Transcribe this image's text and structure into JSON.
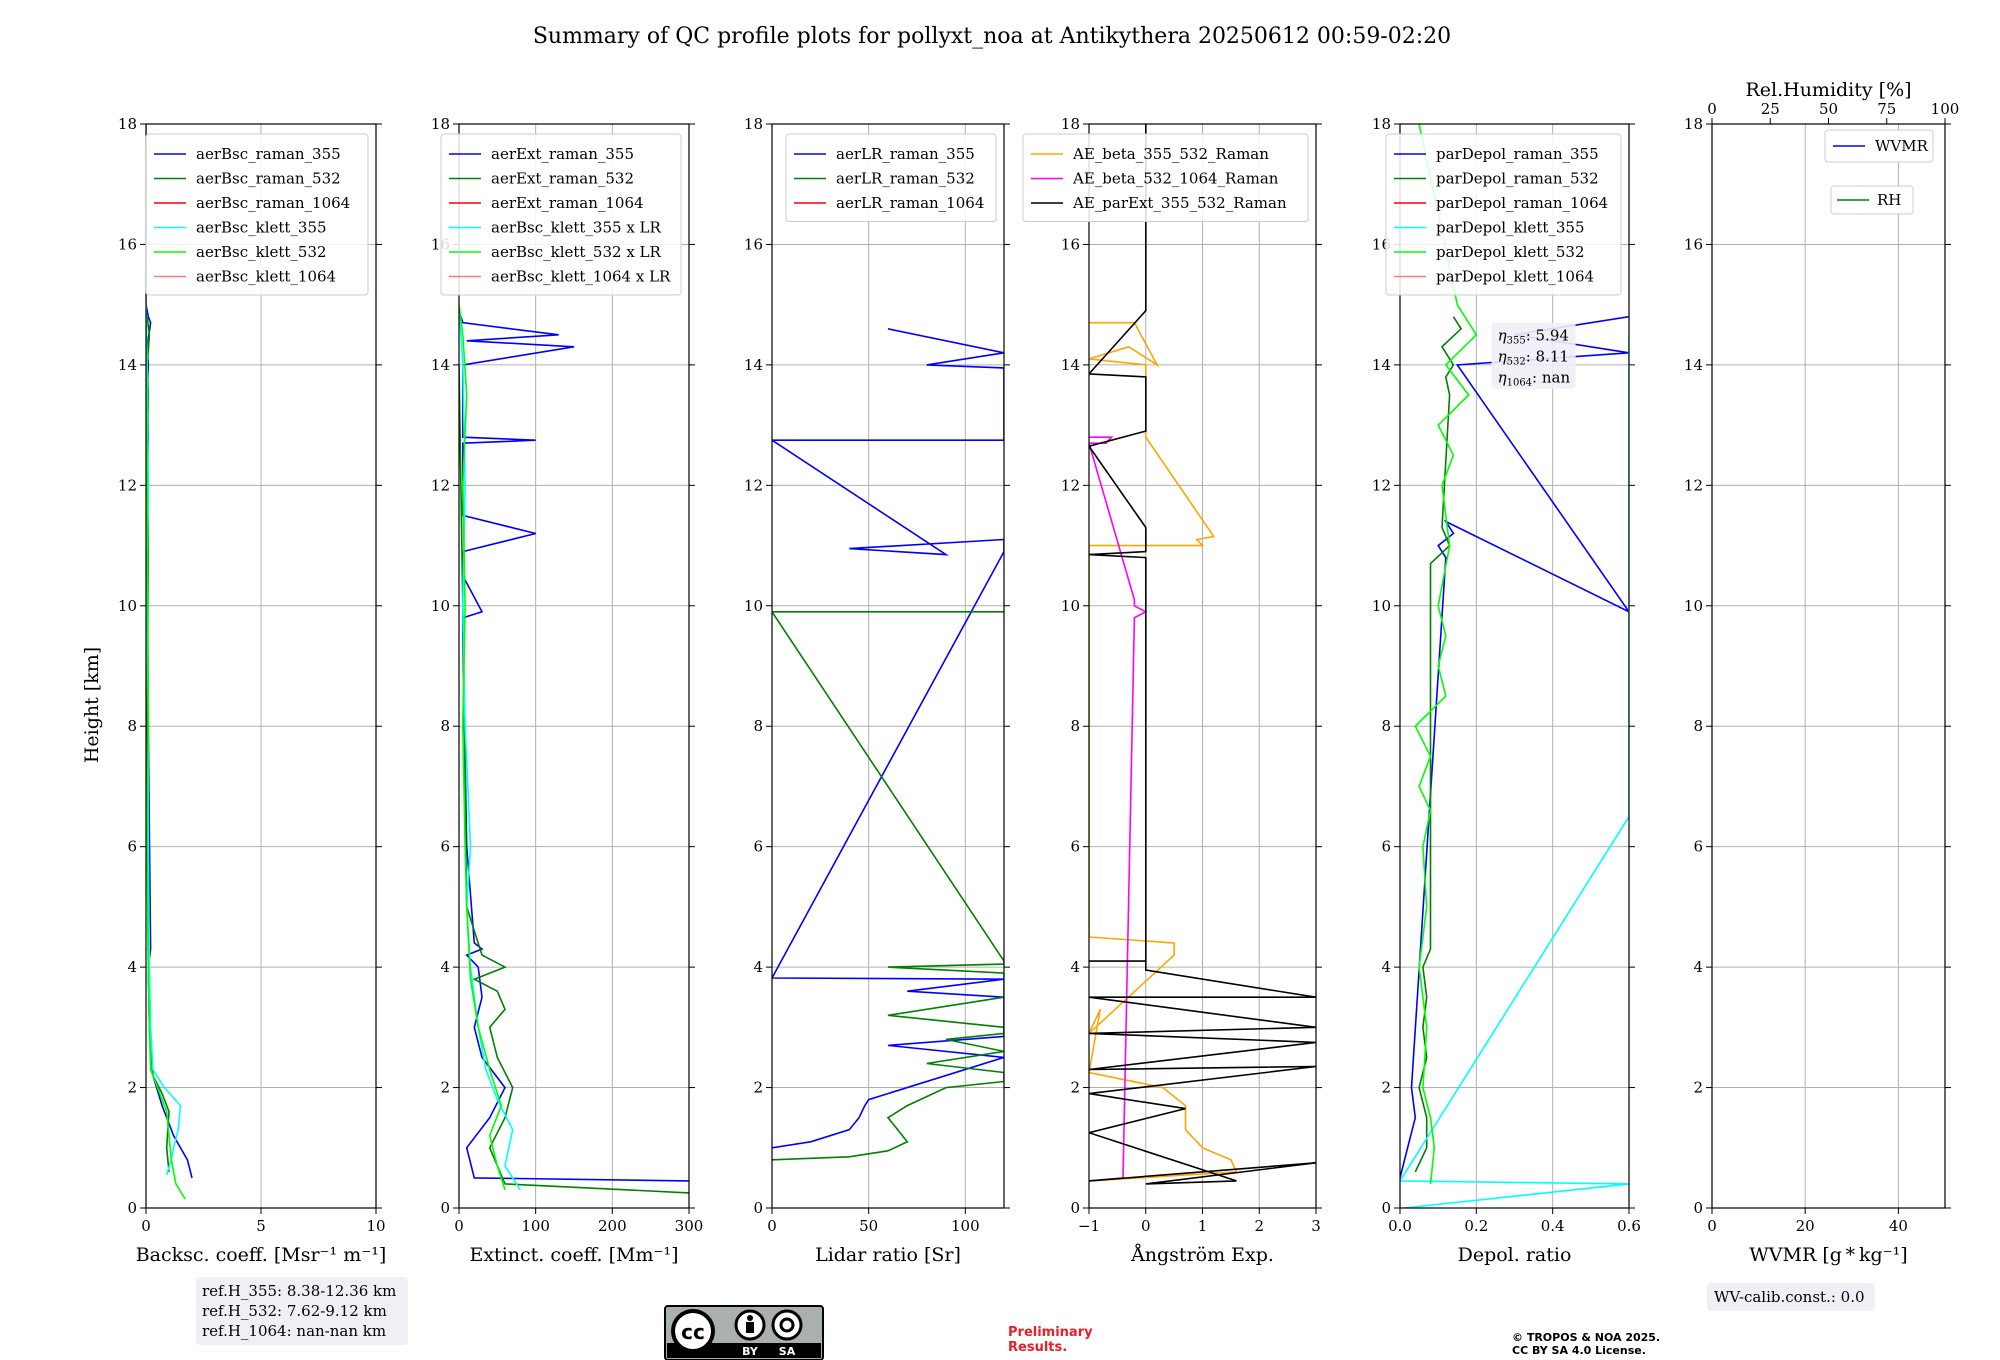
{
  "figure": {
    "title": "Summary of QC profile plots for pollyxt_noa at Antikythera 20250612 00:59-02:20",
    "ylabel": "Height [km]",
    "preliminary_line1": "Preliminary",
    "preliminary_line2": "Results.",
    "copyright_line1": "© TROPOS & NOA 2025.",
    "copyright_line2": "CC BY SA 4.0 License.",
    "cc_badge": {
      "by": "BY",
      "sa": "SA"
    },
    "ref_box": [
      "ref.H_355: 8.38-12.36 km",
      "ref.H_532: 7.62-9.12 km",
      "ref.H_1064: nan-nan km"
    ],
    "wv_box": "WV-calib.const.: 0.0",
    "eta_box": {
      "eta355": "5.94",
      "eta532": "8.11",
      "eta1064": "nan"
    }
  },
  "chart_data": [
    {
      "type": "line",
      "panel": "backscatter",
      "xlabel": "Backsc. coeff. [Msr⁻¹ m⁻¹]",
      "xlim": [
        0,
        10
      ],
      "ylim": [
        0,
        18
      ],
      "xticks": [
        0,
        5,
        10
      ],
      "yticks": [
        0,
        2,
        4,
        6,
        8,
        10,
        12,
        14,
        16,
        18
      ],
      "grid": true,
      "legend": "top-right",
      "series": [
        {
          "name": "aerBsc_raman_355",
          "color": "#0000ff",
          "x": [
            2.0,
            1.8,
            1.2,
            0.7,
            0.3,
            0.15,
            0.1,
            0.2,
            0.1,
            0.05,
            0.1,
            0.05,
            0.1,
            0.05,
            0.1,
            0.05,
            0.2,
            0.1,
            0.0
          ],
          "y": [
            0.5,
            0.8,
            1.2,
            1.7,
            2.2,
            3.0,
            4.0,
            4.3,
            8.0,
            10.8,
            11.2,
            12.0,
            12.8,
            13.5,
            14.0,
            14.3,
            14.7,
            14.8,
            15.0
          ]
        },
        {
          "name": "aerBsc_raman_532",
          "color": "#008000",
          "x": [
            1.0,
            0.9,
            1.0,
            0.7,
            0.3,
            0.15,
            0.1,
            0.05,
            0.1,
            0.05,
            0.1,
            0.05,
            0.15,
            0.05
          ],
          "y": [
            0.6,
            1.0,
            1.6,
            1.9,
            2.2,
            3.0,
            4.0,
            8.0,
            11.0,
            12.0,
            13.5,
            14.0,
            14.5,
            14.8
          ]
        },
        {
          "name": "aerBsc_raman_1064",
          "color": "#ff0000",
          "x": [],
          "y": []
        },
        {
          "name": "aerBsc_klett_355",
          "color": "#00ffff",
          "x": [
            0.9,
            1.1,
            1.2,
            1.4,
            1.5,
            0.8,
            0.3,
            0.2,
            0.15,
            0.1,
            0.1,
            0.05,
            0.1,
            0.05,
            0.0
          ],
          "y": [
            0.55,
            0.8,
            1.0,
            1.3,
            1.7,
            2.0,
            2.3,
            3.0,
            4.0,
            6.0,
            8.0,
            10.0,
            12.0,
            14.0,
            15.0
          ]
        },
        {
          "name": "aerBsc_klett_532",
          "color": "#00ff00",
          "x": [
            1.7,
            1.3,
            1.1,
            1.0,
            0.9,
            0.5,
            0.2,
            0.15,
            0.1,
            0.05,
            0.1,
            0.05,
            0.0,
            0.0
          ],
          "y": [
            0.15,
            0.4,
            0.8,
            1.2,
            1.6,
            2.0,
            2.3,
            3.0,
            4.0,
            6.0,
            8.0,
            12.0,
            15.0,
            18.0
          ]
        },
        {
          "name": "aerBsc_klett_1064",
          "color": "#f08080",
          "x": [],
          "y": []
        }
      ]
    },
    {
      "type": "line",
      "panel": "extinction",
      "xlabel": "Extinct. coeff. [Mm⁻¹]",
      "xlim": [
        0,
        300
      ],
      "ylim": [
        0,
        18
      ],
      "xticks": [
        0,
        100,
        200,
        300
      ],
      "yticks": [
        0,
        2,
        4,
        6,
        8,
        10,
        12,
        14,
        16,
        18
      ],
      "grid": true,
      "legend": "top-right",
      "series": [
        {
          "name": "aerExt_raman_355",
          "color": "#0000ff",
          "x": [
            300,
            20,
            10,
            40,
            60,
            30,
            20,
            30,
            25,
            10,
            30,
            20,
            10,
            5,
            5,
            5,
            30,
            5,
            5,
            100,
            5,
            5,
            100,
            5,
            5,
            5,
            150,
            10,
            130,
            5,
            0
          ],
          "y": [
            0.45,
            0.5,
            1.0,
            1.5,
            2.0,
            2.5,
            3.0,
            3.5,
            4.0,
            4.2,
            4.3,
            4.4,
            6.0,
            9.5,
            9.7,
            9.8,
            9.9,
            10.5,
            10.9,
            11.2,
            11.5,
            12.7,
            12.75,
            12.8,
            13.8,
            14.0,
            14.3,
            14.4,
            14.5,
            14.7,
            14.9
          ]
        },
        {
          "name": "aerExt_raman_532",
          "color": "#008000",
          "x": [
            300,
            60,
            40,
            60,
            70,
            50,
            40,
            60,
            50,
            20,
            60,
            30,
            10,
            5,
            0
          ],
          "y": [
            0.25,
            0.4,
            1.0,
            1.5,
            2.0,
            2.5,
            3.0,
            3.3,
            3.6,
            3.8,
            4.0,
            4.2,
            5.0,
            10.0,
            14.0
          ]
        },
        {
          "name": "aerExt_raman_1064",
          "color": "#ff0000",
          "x": [],
          "y": []
        },
        {
          "name": "aerBsc_klett_355 x LR",
          "color": "#00ffff",
          "x": [
            80,
            60,
            70,
            50,
            35,
            25,
            15,
            10,
            15,
            8,
            5,
            8,
            5,
            0
          ],
          "y": [
            0.3,
            0.7,
            1.3,
            1.8,
            2.3,
            3.0,
            4.0,
            5.0,
            6.0,
            8.0,
            10.0,
            12.0,
            14.0,
            15.0
          ]
        },
        {
          "name": "aerBsc_klett_532 x LR",
          "color": "#00ff00",
          "x": [
            60,
            50,
            40,
            55,
            40,
            25,
            15,
            10,
            8,
            5,
            8,
            5,
            10,
            5,
            0
          ],
          "y": [
            0.3,
            0.7,
            1.2,
            1.7,
            2.3,
            3.0,
            3.8,
            5.0,
            6.0,
            8.0,
            10.0,
            12.0,
            13.5,
            14.5,
            15.0
          ]
        },
        {
          "name": "aerBsc_klett_1064 x LR",
          "color": "#f08080",
          "x": [],
          "y": []
        }
      ]
    },
    {
      "type": "line",
      "panel": "lidar_ratio",
      "xlabel": "Lidar ratio [Sr]",
      "xlim": [
        0,
        120
      ],
      "ylim": [
        0,
        18
      ],
      "xticks": [
        0,
        50,
        100
      ],
      "yticks": [
        0,
        2,
        4,
        6,
        8,
        10,
        12,
        14,
        16,
        18
      ],
      "grid": true,
      "legend": "top-right",
      "series": [
        {
          "name": "aerLR_raman_355",
          "color": "#0000ff",
          "x": [
            0,
            20,
            40,
            45,
            48,
            50,
            120,
            60,
            120,
            120,
            70,
            120,
            0,
            120,
            120,
            40,
            90,
            0,
            120,
            120,
            80,
            120,
            60
          ],
          "y": [
            1.0,
            1.1,
            1.3,
            1.5,
            1.7,
            1.8,
            2.5,
            2.7,
            2.85,
            3.5,
            3.6,
            3.8,
            3.82,
            10.9,
            11.1,
            10.95,
            10.85,
            12.75,
            12.75,
            13.95,
            14.0,
            14.2,
            14.6
          ]
        },
        {
          "name": "aerLR_raman_532",
          "color": "#008000",
          "x": [
            0,
            40,
            60,
            70,
            65,
            60,
            70,
            90,
            120,
            120,
            80,
            120,
            90,
            120,
            120,
            60,
            120,
            120,
            60,
            120,
            120,
            0,
            120
          ],
          "y": [
            0.8,
            0.85,
            0.95,
            1.1,
            1.3,
            1.5,
            1.7,
            2.0,
            2.1,
            2.25,
            2.4,
            2.6,
            2.8,
            2.9,
            3.0,
            3.2,
            3.5,
            3.9,
            4.0,
            4.05,
            4.1,
            9.9,
            9.9
          ]
        },
        {
          "name": "aerLR_raman_1064",
          "color": "#ff0000",
          "x": [],
          "y": []
        }
      ]
    },
    {
      "type": "line",
      "panel": "angstrom",
      "xlabel": "Ångström Exp.",
      "xlim": [
        -1,
        3
      ],
      "ylim": [
        0,
        18
      ],
      "xticks": [
        -1,
        0,
        1,
        2,
        3
      ],
      "yticks": [
        0,
        2,
        4,
        6,
        8,
        10,
        12,
        14,
        16,
        18
      ],
      "grid": true,
      "legend": "top-right",
      "series": [
        {
          "name": "AE_beta_355_532_Raman",
          "color": "#ffa500",
          "x": [
            -1,
            1.6,
            1.5,
            1.0,
            0.7,
            0.7,
            0.3,
            -1,
            -0.8,
            -1,
            0.5,
            0.5,
            -1,
            -1,
            1.0,
            0.9,
            1.2,
            0,
            0,
            -1,
            -0.3,
            0.2,
            -0.2,
            -1
          ],
          "y": [
            0.45,
            0.6,
            0.8,
            1.0,
            1.3,
            1.7,
            2.0,
            2.25,
            3.3,
            2.9,
            4.2,
            4.4,
            4.5,
            11.0,
            11.0,
            11.1,
            11.15,
            12.8,
            14.0,
            14.1,
            14.3,
            14.0,
            14.7,
            14.7
          ]
        },
        {
          "name": "AE_beta_532_1064_Raman",
          "color": "#ff00ff",
          "x": [
            -1,
            -0.4,
            -0.2,
            0,
            -0.2,
            -0.2,
            -1,
            -0.7,
            -0.6,
            -1
          ],
          "y": [
            0.45,
            0.5,
            9.8,
            9.9,
            10.0,
            10.1,
            12.7,
            12.7,
            12.8,
            12.8
          ]
        },
        {
          "name": "AE_parExt_355_532_Raman",
          "color": "#000000",
          "x": [
            -1,
            3,
            0.0,
            1.6,
            -1,
            0.7,
            -1,
            3,
            -1,
            3,
            -1,
            3,
            -1,
            3,
            0,
            0,
            -1,
            0,
            0,
            -1,
            0,
            0,
            -1,
            0,
            0,
            -1,
            0,
            0
          ],
          "y": [
            0.45,
            0.75,
            0.4,
            0.45,
            1.25,
            1.65,
            1.9,
            2.35,
            2.3,
            2.75,
            2.9,
            3.0,
            3.5,
            3.5,
            3.95,
            4.1,
            4.1,
            4.1,
            10.8,
            10.85,
            10.9,
            11.3,
            12.65,
            12.9,
            13.8,
            13.85,
            14.9,
            18.0
          ]
        }
      ]
    },
    {
      "type": "line",
      "panel": "depol",
      "xlabel": "Depol. ratio",
      "xlim": [
        0.0,
        0.6
      ],
      "ylim": [
        0,
        18
      ],
      "xticks": [
        0.0,
        0.2,
        0.4,
        0.6
      ],
      "yticks": [
        0,
        2,
        4,
        6,
        8,
        10,
        12,
        14,
        16,
        18
      ],
      "grid": true,
      "legend": "top-right",
      "series": [
        {
          "name": "parDepol_raman_355",
          "color": "#0000ff",
          "x": [
            0.0,
            0.02,
            0.04,
            0.03,
            0.12,
            0.1,
            0.14,
            0.12,
            0.6,
            0.15,
            0.6,
            0.3,
            0.6
          ],
          "y": [
            0.5,
            1.0,
            1.5,
            2.0,
            10.8,
            11.0,
            11.2,
            11.4,
            9.9,
            14.0,
            14.2,
            14.5,
            14.8
          ]
        },
        {
          "name": "parDepol_raman_532",
          "color": "#008000",
          "x": [
            0.04,
            0.07,
            0.07,
            0.05,
            0.07,
            0.06,
            0.07,
            0.06,
            0.08,
            0.08,
            0.13,
            0.11,
            0.13,
            0.12,
            0.14,
            0.11,
            0.16,
            0.14
          ],
          "y": [
            0.6,
            1.0,
            1.5,
            2.0,
            2.5,
            3.0,
            3.5,
            4.0,
            4.3,
            10.7,
            11.0,
            11.3,
            13.5,
            13.8,
            14.0,
            14.3,
            14.6,
            14.8
          ]
        },
        {
          "name": "parDepol_raman_1064",
          "color": "#ff0000",
          "x": [],
          "y": []
        },
        {
          "name": "parDepol_klett_355",
          "color": "#00ffff",
          "x": [
            0.01,
            0.6,
            0.0,
            0.6,
            0.6,
            0.6,
            0.6,
            0.6,
            0.6,
            0.6,
            0.6,
            0.6,
            0.6
          ],
          "y": [
            0.0,
            0.4,
            0.45,
            6.5,
            8.6,
            9.5,
            10.0,
            10.7,
            11.3,
            12.1,
            12.6,
            13.0,
            14.5
          ]
        },
        {
          "name": "parDepol_klett_532",
          "color": "#00ff00",
          "x": [
            0.08,
            0.09,
            0.08,
            0.06,
            0.07,
            0.05,
            0.07,
            0.06,
            0.08,
            0.05,
            0.08,
            0.04,
            0.12,
            0.1,
            0.12,
            0.1,
            0.13,
            0.11,
            0.14,
            0.1,
            0.18,
            0.12,
            0.2,
            0.15,
            0.1,
            0.05
          ],
          "y": [
            0.4,
            1.0,
            1.5,
            2.0,
            3.0,
            4.0,
            5.0,
            6.0,
            6.6,
            7.0,
            7.5,
            8.0,
            8.5,
            9.0,
            9.5,
            10.0,
            11.0,
            12.0,
            12.5,
            13.0,
            13.5,
            14.0,
            14.5,
            15.0,
            16.5,
            18.0
          ]
        },
        {
          "name": "parDepol_klett_1064",
          "color": "#f08080",
          "x": [],
          "y": []
        }
      ]
    },
    {
      "type": "line",
      "panel": "wvmr",
      "xlabel": "WVMR [g * kg⁻¹]",
      "top_xlabel": "Rel.Humidity [%]",
      "xlim": [
        0,
        50
      ],
      "top_xlim": [
        0,
        100
      ],
      "ylim": [
        0,
        18
      ],
      "xticks": [
        0,
        20,
        40
      ],
      "top_xticks": [
        0,
        25,
        50,
        75,
        100
      ],
      "yticks": [
        0,
        2,
        4,
        6,
        8,
        10,
        12,
        14,
        16,
        18
      ],
      "grid": true,
      "legend": "top-right",
      "series": [
        {
          "name": "WVMR",
          "color": "#0000ff",
          "x": [],
          "y": []
        },
        {
          "name": "RH",
          "color": "#008000",
          "x": [],
          "y": []
        }
      ]
    }
  ]
}
